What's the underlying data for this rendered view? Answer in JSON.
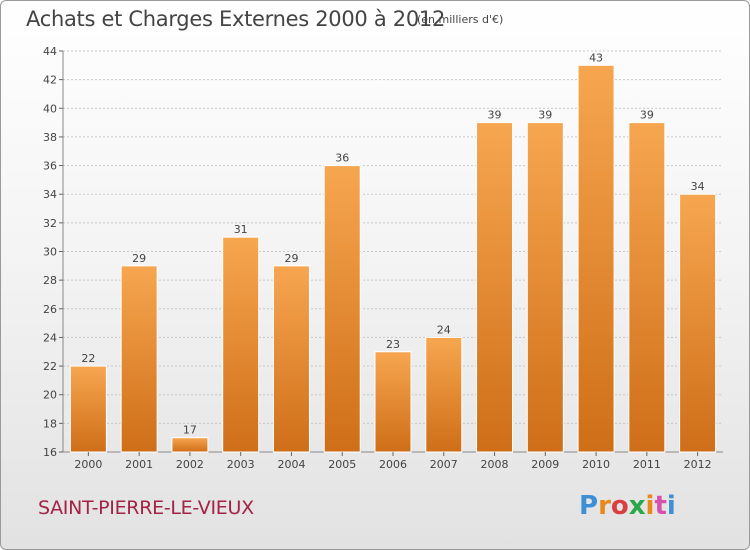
{
  "header": {
    "title": "Achats et Charges Externes 2000 à 2012",
    "subtitle": "(en milliers d'€)"
  },
  "footer": {
    "commune": "SAINT-PIERRE-LE-VIEUX",
    "logo_text": "Proxiti",
    "logo_colors": [
      "#3d8fd6",
      "#e8891c",
      "#d93f3f",
      "#2aa74a",
      "#e8891c",
      "#d94fae",
      "#3d8fd6"
    ]
  },
  "chart_data": {
    "type": "bar",
    "title": "Achats et Charges Externes 2000 à 2012",
    "subtitle": "(en milliers d'€)",
    "categories": [
      "2000",
      "2001",
      "2002",
      "2003",
      "2004",
      "2005",
      "2006",
      "2007",
      "2008",
      "2009",
      "2010",
      "2011",
      "2012"
    ],
    "values": [
      22,
      29,
      17,
      31,
      29,
      36,
      23,
      24,
      39,
      39,
      43,
      39,
      34
    ],
    "ylim": [
      16,
      44
    ],
    "yticks": [
      16,
      18,
      20,
      22,
      24,
      26,
      28,
      30,
      32,
      34,
      36,
      38,
      40,
      42,
      44
    ],
    "grid": true,
    "bar_color_top": "#f7a650",
    "bar_color_bottom": "#cf6e18",
    "xlabel": "",
    "ylabel": ""
  }
}
